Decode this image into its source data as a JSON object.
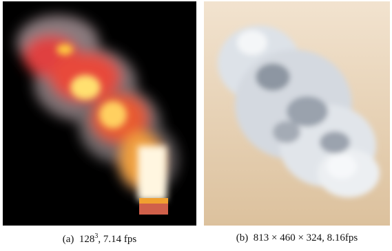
{
  "figures": [
    {
      "label": "(a)",
      "caption": {
        "base": "128",
        "sup": "3",
        "rest": ", 7.14 fps"
      }
    },
    {
      "label": "(b)",
      "caption": {
        "text": "813 × 460 × 324, 8.16fps"
      }
    }
  ]
}
